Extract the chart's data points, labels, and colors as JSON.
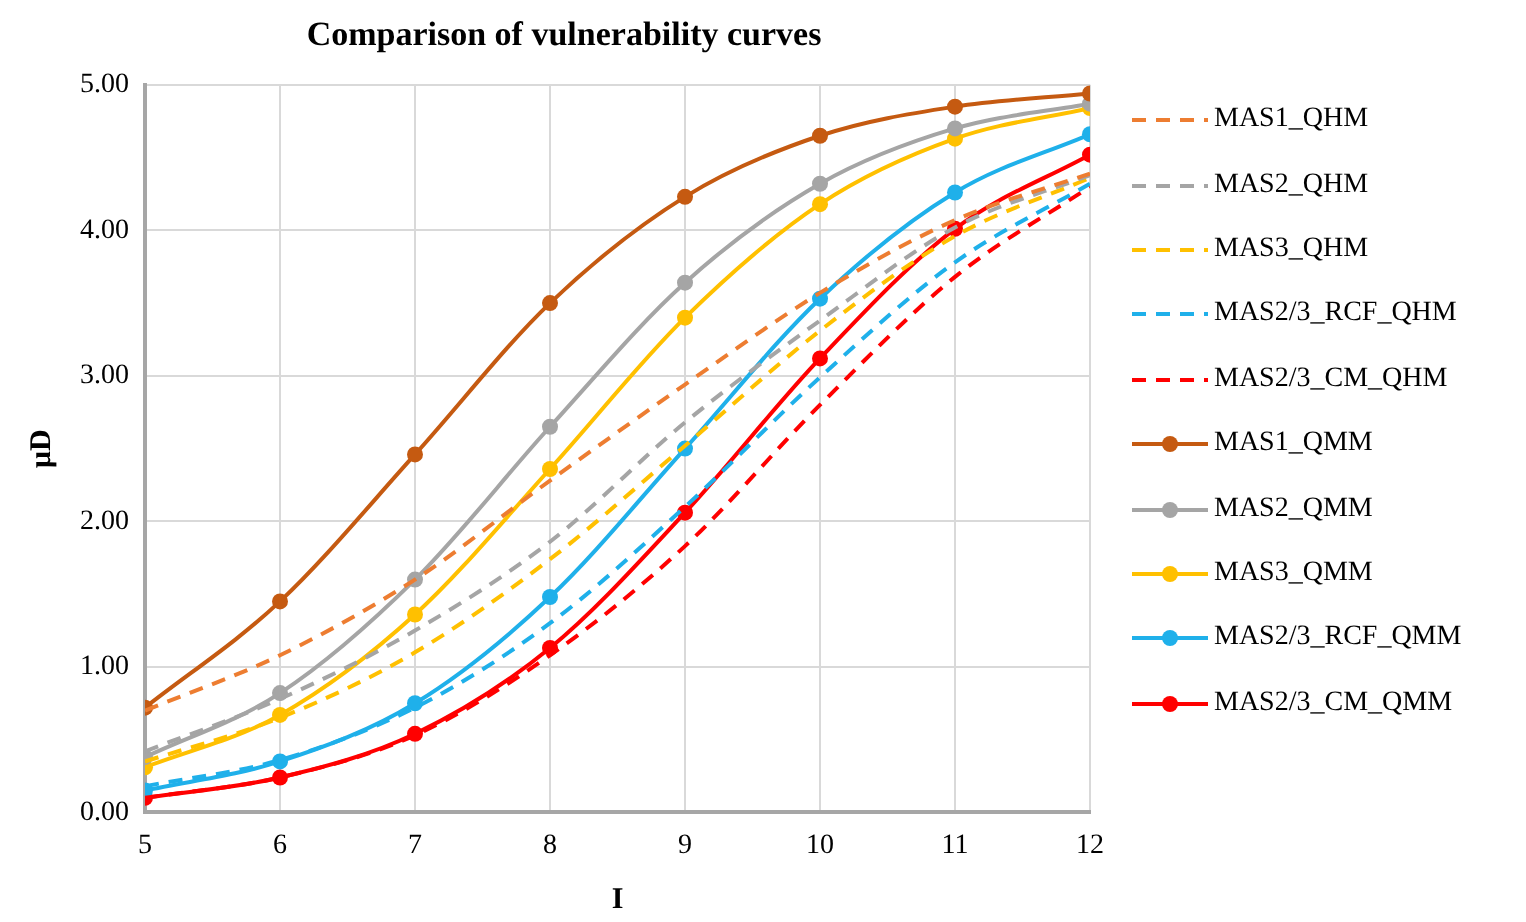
{
  "chart_data": {
    "type": "line",
    "title": "Comparison of vulnerability curves",
    "xlabel": "I",
    "ylabel": "μD",
    "x": [
      5,
      6,
      7,
      8,
      9,
      10,
      11,
      12
    ],
    "xlim": [
      5,
      12
    ],
    "xticks": [
      5,
      6,
      7,
      8,
      9,
      10,
      11,
      12
    ],
    "ylim": [
      0,
      5
    ],
    "yticks": [
      {
        "value": 0,
        "label": "0.00"
      },
      {
        "value": 1,
        "label": "1.00"
      },
      {
        "value": 2,
        "label": "2.00"
      },
      {
        "value": 3,
        "label": "3.00"
      },
      {
        "value": 4,
        "label": "4.00"
      },
      {
        "value": 5,
        "label": "5.00"
      }
    ],
    "grid": true,
    "legend": "right",
    "series": [
      {
        "name": "MAS1_QHM",
        "color": "#ed7d31",
        "line_style": "dashed",
        "marker": "none",
        "values": [
          0.7,
          1.08,
          1.6,
          2.28,
          2.94,
          3.57,
          4.07,
          4.39
        ]
      },
      {
        "name": "MAS2_QHM",
        "color": "#a5a5a5",
        "line_style": "dashed",
        "marker": "none",
        "values": [
          0.42,
          0.78,
          1.25,
          1.86,
          2.68,
          3.38,
          4.02,
          4.38
        ]
      },
      {
        "name": "MAS3_QHM",
        "color": "#ffc000",
        "line_style": "dashed",
        "marker": "none",
        "values": [
          0.35,
          0.65,
          1.1,
          1.74,
          2.52,
          3.31,
          3.96,
          4.36
        ]
      },
      {
        "name": "MAS2/3_RCF_QHM",
        "color": "#1fb0ea",
        "line_style": "dashed",
        "marker": "none",
        "values": [
          0.18,
          0.36,
          0.72,
          1.3,
          2.1,
          2.99,
          3.78,
          4.32
        ]
      },
      {
        "name": "MAS2/3_CM_QHM",
        "color": "#ff0000",
        "line_style": "dashed",
        "marker": "none",
        "values": [
          0.1,
          0.24,
          0.53,
          1.08,
          1.83,
          2.8,
          3.68,
          4.3
        ]
      },
      {
        "name": "MAS1_QMM",
        "color": "#c55a11",
        "line_style": "solid",
        "marker": "circle",
        "values": [
          0.72,
          1.45,
          2.46,
          3.5,
          4.23,
          4.65,
          4.85,
          4.94
        ]
      },
      {
        "name": "MAS2_QMM",
        "color": "#a5a5a5",
        "line_style": "solid",
        "marker": "circle",
        "values": [
          0.38,
          0.82,
          1.6,
          2.65,
          3.64,
          4.32,
          4.7,
          4.87
        ]
      },
      {
        "name": "MAS3_QMM",
        "color": "#ffc000",
        "line_style": "solid",
        "marker": "circle",
        "values": [
          0.31,
          0.67,
          1.36,
          2.36,
          3.4,
          4.18,
          4.63,
          4.84
        ]
      },
      {
        "name": "MAS2/3_RCF_QMM",
        "color": "#1fb0ea",
        "line_style": "solid",
        "marker": "circle",
        "values": [
          0.15,
          0.35,
          0.75,
          1.48,
          2.5,
          3.53,
          4.26,
          4.66
        ]
      },
      {
        "name": "MAS2/3_CM_QMM",
        "color": "#ff0000",
        "line_style": "solid",
        "marker": "circle",
        "values": [
          0.1,
          0.24,
          0.54,
          1.13,
          2.06,
          3.12,
          4.01,
          4.52
        ]
      }
    ]
  }
}
